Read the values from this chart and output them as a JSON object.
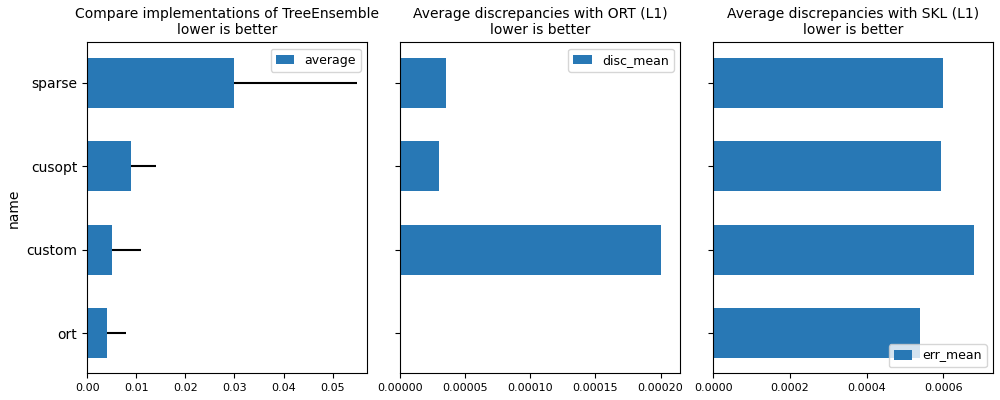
{
  "names": [
    "sparse",
    "cusopt",
    "custom",
    "ort"
  ],
  "chart1": {
    "title": "Compare implementations of TreeEnsemble\nlower is better",
    "ylabel": "name",
    "legend_label": "average",
    "values": [
      0.03,
      0.009,
      0.005,
      0.004
    ],
    "errors": [
      0.025,
      0.005,
      0.006,
      0.004
    ],
    "color": "#2878b5",
    "xlim": [
      0,
      0.057
    ]
  },
  "chart2": {
    "title": "Average discrepancies with ORT (L1)\nlower is better",
    "legend_label": "disc_mean",
    "values": [
      3.5e-05,
      3e-05,
      0.0002,
      0.0
    ],
    "color": "#2878b5",
    "xlim": [
      0,
      0.000215
    ]
  },
  "chart3": {
    "title": "Average discrepancies with SKL (L1)\nlower is better",
    "legend_label": "err_mean",
    "values": [
      0.0006,
      0.000595,
      0.00068,
      0.00054
    ],
    "color": "#2878b5",
    "xlim": [
      0,
      0.00073
    ]
  }
}
